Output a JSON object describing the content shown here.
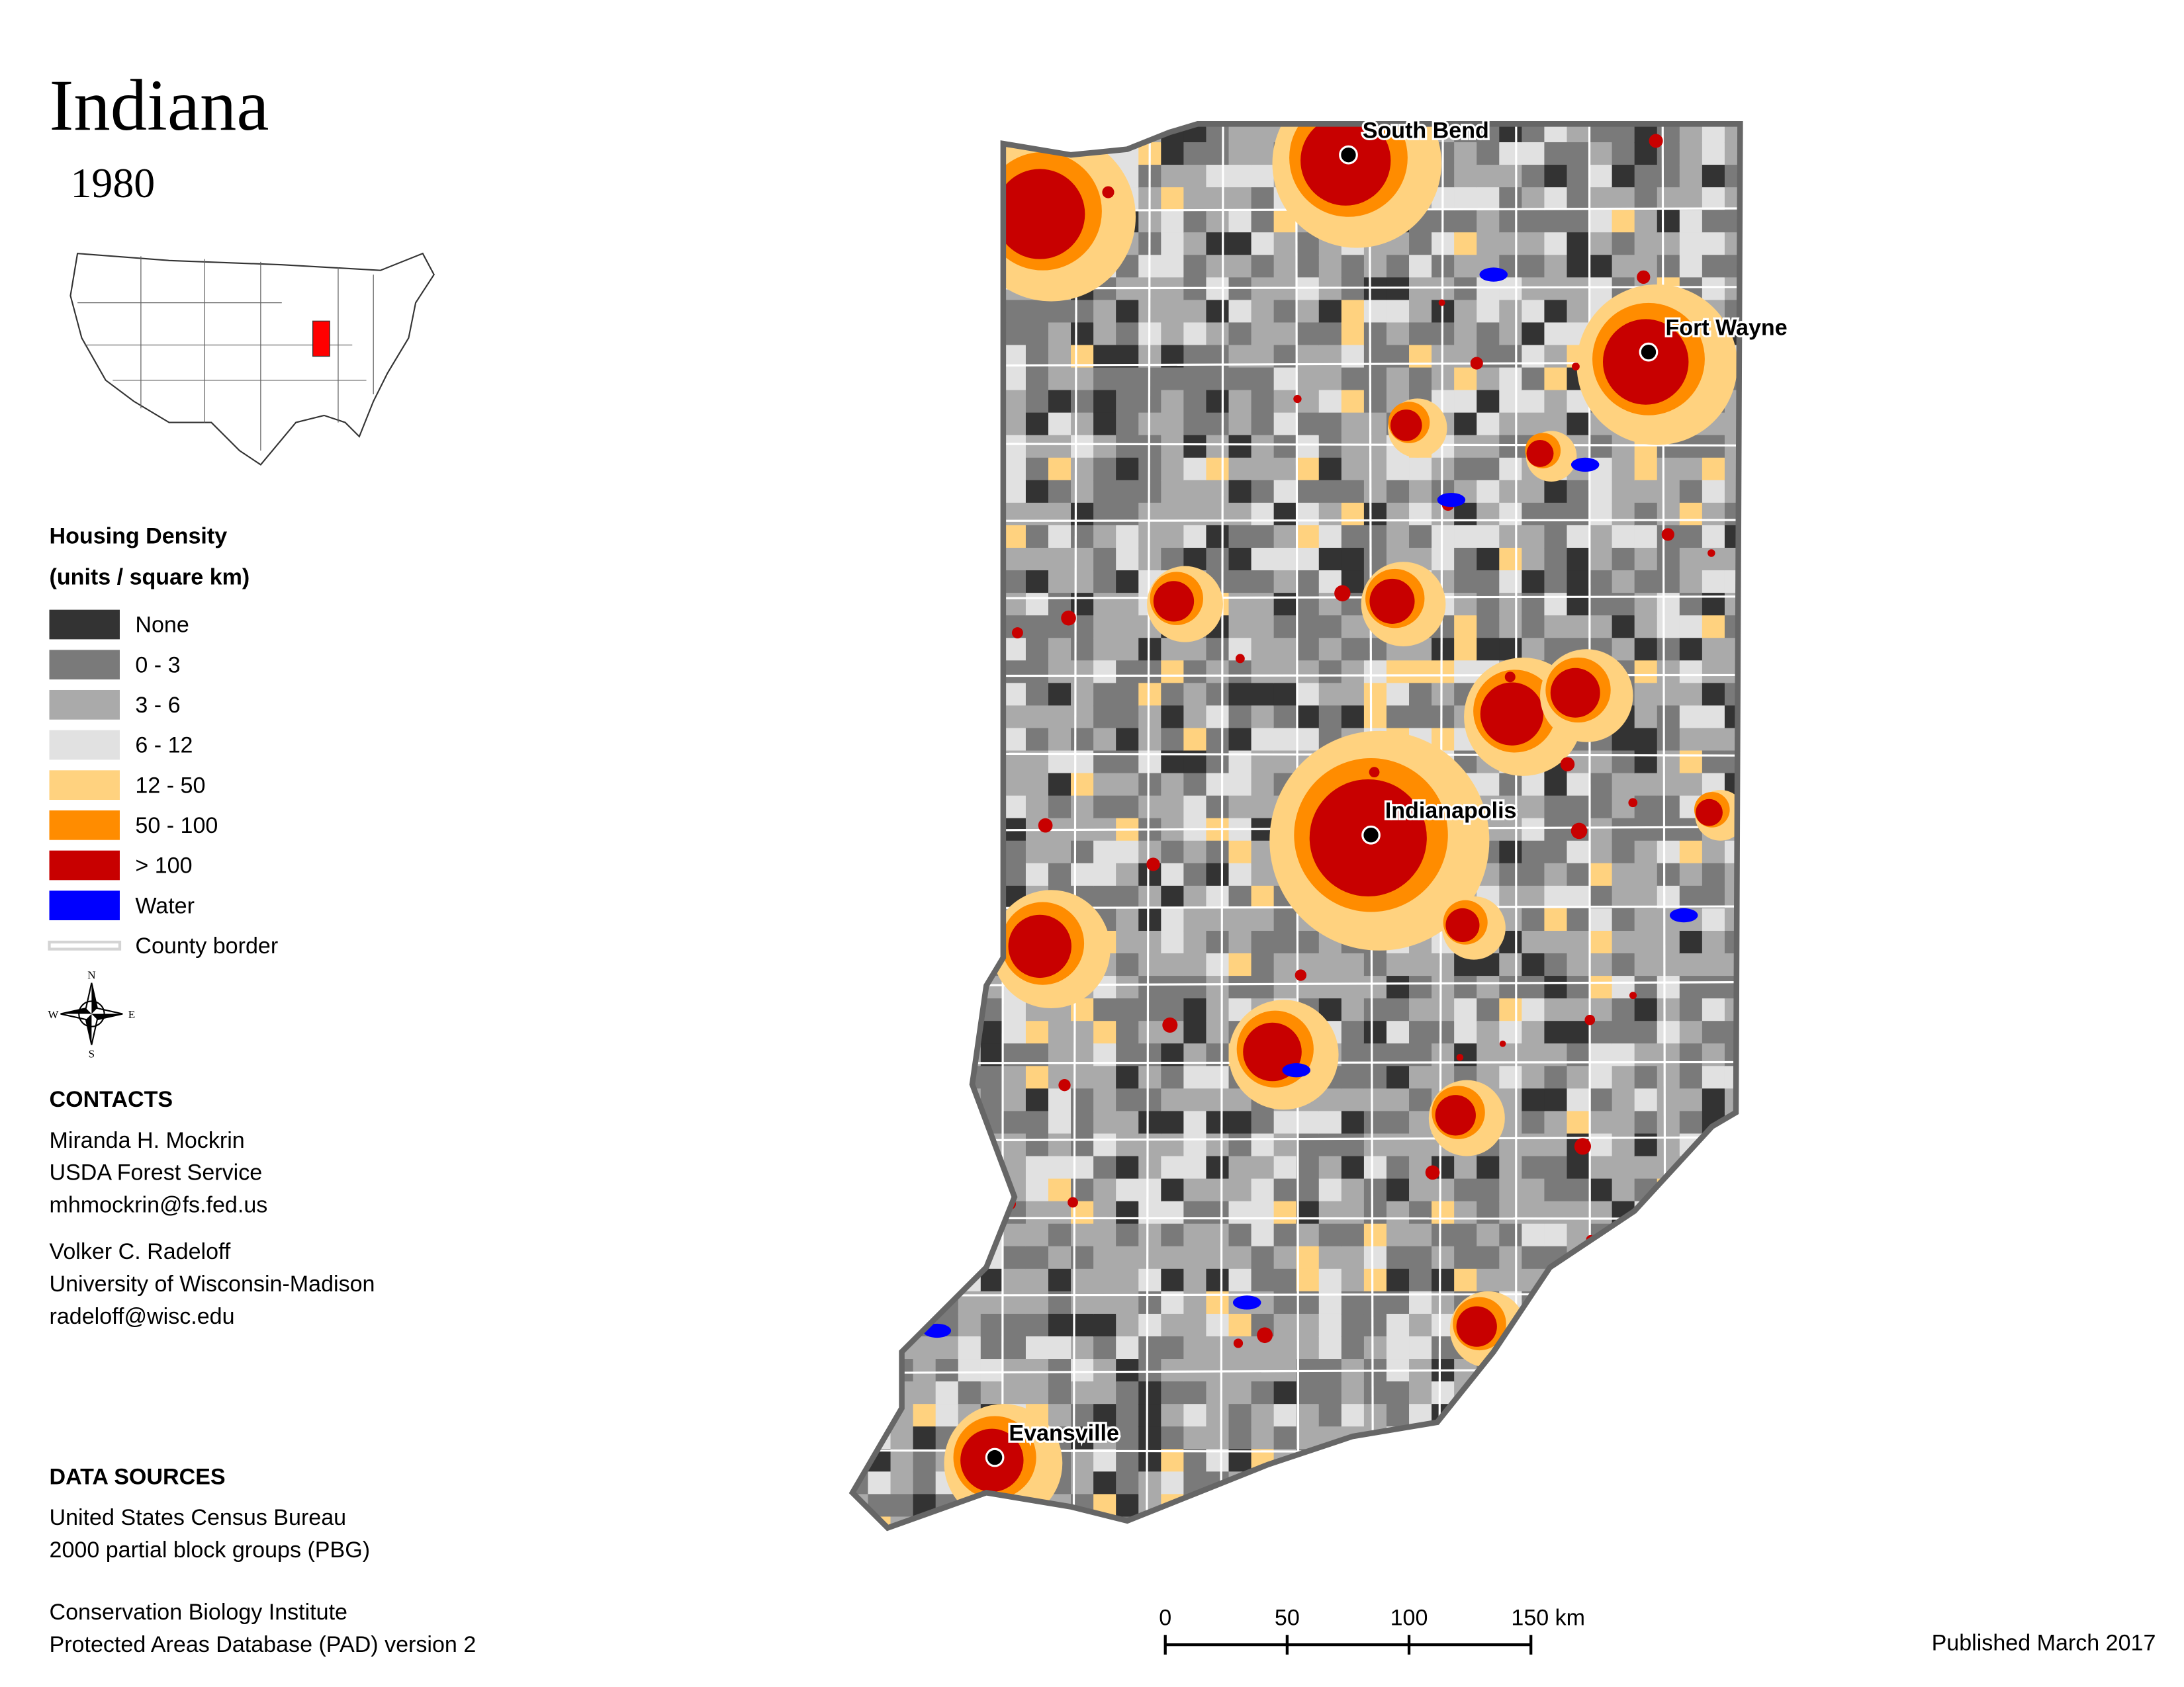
{
  "header": {
    "title": "Indiana",
    "year": "1980"
  },
  "legend": {
    "title": "Housing Density",
    "subtitle": "(units / square km)",
    "items": [
      {
        "label": "None",
        "color": "#333333"
      },
      {
        "label": "0 - 3",
        "color": "#7a7a7a"
      },
      {
        "label": "3 - 6",
        "color": "#aaaaaa"
      },
      {
        "label": "6 - 12",
        "color": "#e1e1e1"
      },
      {
        "label": "12 - 50",
        "color": "#ffd27f"
      },
      {
        "label": "50 - 100",
        "color": "#ff8c00"
      },
      {
        "label": "> 100",
        "color": "#c80000"
      },
      {
        "label": "Water",
        "color": "#0000ff"
      }
    ],
    "border": {
      "label": "County border",
      "color": "#d4d4d4"
    }
  },
  "compass": {
    "n": "N",
    "e": "E",
    "s": "S",
    "w": "W"
  },
  "contacts": {
    "heading": "CONTACTS",
    "people": [
      [
        "Miranda H. Mockrin",
        "USDA Forest Service",
        "mhmockrin@fs.fed.us"
      ],
      [
        "Volker C. Radeloff",
        "University of Wisconsin-Madison",
        "radeloff@wisc.edu"
      ]
    ]
  },
  "data_sources": {
    "heading": "DATA SOURCES",
    "entries": [
      [
        "United States Census Bureau",
        "2000 partial block groups (PBG)"
      ],
      [
        "Conservation Biology Institute",
        "Protected Areas Database (PAD) version 2"
      ]
    ]
  },
  "scale_bar": {
    "labels": [
      "0",
      "50",
      "100",
      "150 km"
    ]
  },
  "cities": [
    {
      "label": "South Bend"
    },
    {
      "label": "Fort Wayne"
    },
    {
      "label": "Indianapolis"
    },
    {
      "label": "Evansville"
    }
  ],
  "published": "Published March 2017"
}
